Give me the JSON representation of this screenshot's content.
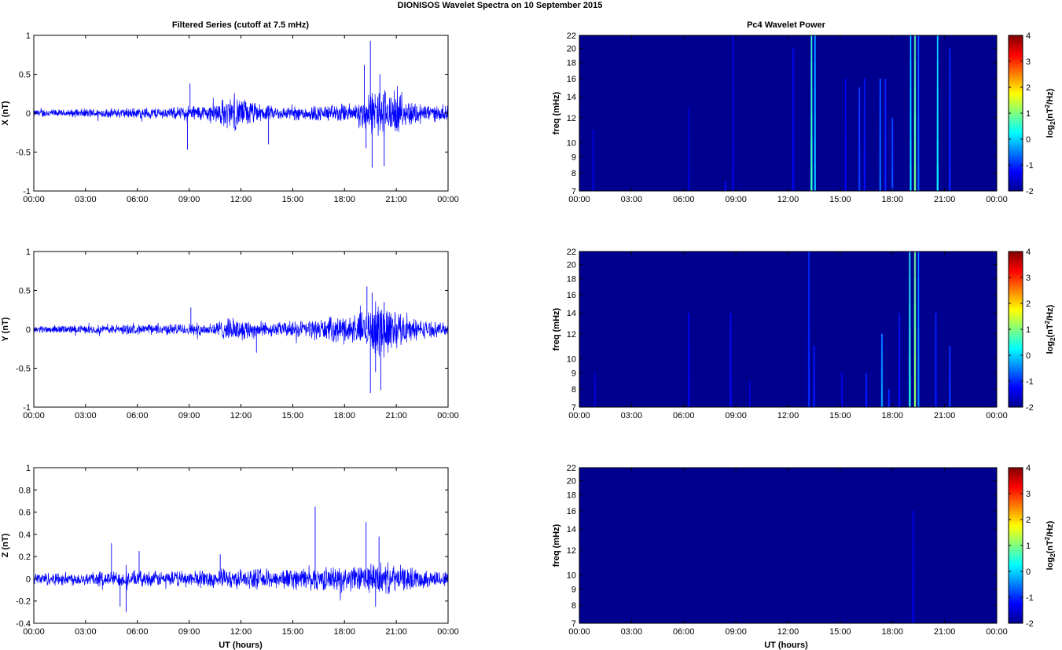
{
  "figure": {
    "title": "DIONISOS Wavelet Spectra on 10 September 2015",
    "left_title": "Filtered Series (cutoff at 7.5 mHz)",
    "right_title": "Pc4 Wavelet Power",
    "xlabel": "UT (hours)"
  },
  "colors": {
    "series_line": "#0000ff",
    "spectrogram_background": "#00008f",
    "colormap": "jet"
  },
  "chart_data": [
    {
      "type": "line",
      "ylabel": "X (nT)",
      "x_ticks": [
        "00:00",
        "03:00",
        "06:00",
        "09:00",
        "12:00",
        "15:00",
        "18:00",
        "21:00",
        "00:00"
      ],
      "xlim_hours": [
        0,
        24
      ],
      "ylim": [
        -1,
        1
      ],
      "y_ticks": [
        "-1",
        "-0.5",
        "0",
        "0.5",
        "1"
      ],
      "y_tick_values": [
        -1,
        -0.5,
        0,
        0.5,
        1
      ],
      "series": [
        {
          "envelope": [
            0.05,
            0.07,
            0.05,
            0.06,
            0.07,
            0.07,
            0.07,
            0.08,
            0.08,
            0.09,
            0.08,
            0.1,
            0.12,
            0.12,
            0.2,
            0.26,
            0.2,
            0.13,
            0.1,
            0.1,
            0.11,
            0.12,
            0.12,
            0.14,
            0.15,
            0.28,
            0.4,
            0.3,
            0.2,
            0.16,
            0.12,
            0.1
          ],
          "spikes": [
            [
              8.9,
              -0.47
            ],
            [
              9.05,
              0.38
            ],
            [
              13.6,
              -0.4
            ],
            [
              19.5,
              0.93
            ],
            [
              19.6,
              -0.7
            ],
            [
              20.3,
              -0.68
            ],
            [
              20.05,
              0.5
            ],
            [
              19.25,
              -0.45
            ],
            [
              19.15,
              0.62
            ]
          ]
        }
      ]
    },
    {
      "type": "line",
      "ylabel": "Y (nT)",
      "x_ticks": [
        "00:00",
        "03:00",
        "06:00",
        "09:00",
        "12:00",
        "15:00",
        "18:00",
        "21:00",
        "00:00"
      ],
      "xlim_hours": [
        0,
        24
      ],
      "ylim": [
        -1,
        1
      ],
      "y_ticks": [
        "-1",
        "-0.5",
        "0",
        "0.5",
        "1"
      ],
      "y_tick_values": [
        -1,
        -0.5,
        0,
        0.5,
        1
      ],
      "series": [
        {
          "envelope": [
            0.05,
            0.06,
            0.06,
            0.06,
            0.06,
            0.07,
            0.07,
            0.08,
            0.07,
            0.08,
            0.08,
            0.09,
            0.09,
            0.1,
            0.14,
            0.17,
            0.15,
            0.12,
            0.1,
            0.12,
            0.13,
            0.15,
            0.17,
            0.2,
            0.22,
            0.3,
            0.45,
            0.3,
            0.2,
            0.14,
            0.11,
            0.09
          ],
          "spikes": [
            [
              9.1,
              0.28
            ],
            [
              12.9,
              -0.3
            ],
            [
              19.5,
              -0.82
            ],
            [
              19.6,
              0.47
            ],
            [
              20.1,
              -0.78
            ],
            [
              20.3,
              0.35
            ],
            [
              19.3,
              0.55
            ],
            [
              19.8,
              -0.55
            ]
          ]
        }
      ]
    },
    {
      "type": "line",
      "ylabel": "Z (nT)",
      "x_ticks": [
        "00:00",
        "03:00",
        "06:00",
        "09:00",
        "12:00",
        "15:00",
        "18:00",
        "21:00",
        "00:00"
      ],
      "xlim_hours": [
        0,
        24
      ],
      "ylim": [
        -0.4,
        1
      ],
      "y_ticks": [
        "-0.4",
        "-0.2",
        "0",
        "0.2",
        "0.4",
        "0.6",
        "0.8",
        "1"
      ],
      "y_tick_values": [
        -0.4,
        -0.2,
        0,
        0.2,
        0.4,
        0.6,
        0.8,
        1
      ],
      "series": [
        {
          "envelope": [
            0.06,
            0.07,
            0.07,
            0.07,
            0.07,
            0.08,
            0.08,
            0.08,
            0.08,
            0.08,
            0.08,
            0.08,
            0.09,
            0.09,
            0.1,
            0.1,
            0.1,
            0.1,
            0.1,
            0.11,
            0.11,
            0.12,
            0.12,
            0.13,
            0.13,
            0.15,
            0.17,
            0.14,
            0.12,
            0.1,
            0.09,
            0.08
          ],
          "spikes": [
            [
              4.5,
              0.32
            ],
            [
              5.35,
              -0.3
            ],
            [
              5.0,
              -0.25
            ],
            [
              16.3,
              0.65
            ],
            [
              19.25,
              0.51
            ],
            [
              20.0,
              0.38
            ],
            [
              19.8,
              -0.25
            ],
            [
              10.8,
              0.22
            ],
            [
              6.1,
              0.25
            ]
          ]
        }
      ]
    },
    {
      "type": "heatmap",
      "ylabel": "freq (mHz)",
      "x_ticks": [
        "00:00",
        "03:00",
        "06:00",
        "09:00",
        "12:00",
        "15:00",
        "18:00",
        "21:00",
        "00:00"
      ],
      "xlim_hours": [
        0,
        24
      ],
      "ylim_mhz": [
        7,
        22
      ],
      "y_tick_values": [
        7,
        8,
        9,
        10,
        12,
        14,
        16,
        18,
        20,
        22
      ],
      "y_ticks": [
        "7",
        "8",
        "9",
        "10",
        "12",
        "14",
        "16",
        "18",
        "20",
        "22"
      ],
      "colorbar_label": "log2(nT2/Hz)",
      "colorbar_ticks": [
        "4",
        "3",
        "2",
        "1",
        "0",
        "-1",
        "-2"
      ],
      "clim": [
        -2,
        4
      ],
      "streaks": [
        [
          0.8,
          11,
          0.15
        ],
        [
          8.4,
          7.5,
          0.35
        ],
        [
          8.85,
          22,
          0.2
        ],
        [
          6.3,
          13,
          0.1
        ],
        [
          13.35,
          22,
          2.2
        ],
        [
          13.55,
          22,
          1.5
        ],
        [
          12.3,
          20,
          0.3
        ],
        [
          15.3,
          16,
          0.25
        ],
        [
          16.1,
          15,
          0.7
        ],
        [
          16.4,
          16,
          0.4
        ],
        [
          17.3,
          16,
          1.0
        ],
        [
          17.6,
          16,
          0.5
        ],
        [
          18.0,
          12,
          0.8
        ],
        [
          19.05,
          22,
          1.6
        ],
        [
          19.3,
          22,
          2.6
        ],
        [
          19.5,
          22,
          0.9
        ],
        [
          20.6,
          22,
          1.8
        ],
        [
          21.3,
          20,
          0.6
        ]
      ]
    },
    {
      "type": "heatmap",
      "ylabel": "freq (mHz)",
      "x_ticks": [
        "00:00",
        "03:00",
        "06:00",
        "09:00",
        "12:00",
        "15:00",
        "18:00",
        "21:00",
        "00:00"
      ],
      "xlim_hours": [
        0,
        24
      ],
      "ylim_mhz": [
        7,
        22
      ],
      "y_tick_values": [
        7,
        8,
        9,
        10,
        12,
        14,
        16,
        18,
        20,
        22
      ],
      "y_ticks": [
        "7",
        "8",
        "9",
        "10",
        "12",
        "14",
        "16",
        "18",
        "20",
        "22"
      ],
      "colorbar_label": "log2(nT2/Hz)",
      "colorbar_ticks": [
        "4",
        "3",
        "2",
        "1",
        "0",
        "-1",
        "-2"
      ],
      "clim": [
        -2,
        4
      ],
      "streaks": [
        [
          0.9,
          9,
          0.1
        ],
        [
          6.3,
          14,
          0.3
        ],
        [
          8.7,
          14,
          0.3
        ],
        [
          9.8,
          8.5,
          0.1
        ],
        [
          13.2,
          22,
          0.6
        ],
        [
          13.5,
          11,
          0.5
        ],
        [
          15.1,
          9,
          0.2
        ],
        [
          16.5,
          9,
          0.5
        ],
        [
          17.4,
          12,
          1.3
        ],
        [
          17.8,
          8,
          0.6
        ],
        [
          18.4,
          14,
          0.4
        ],
        [
          19.0,
          22,
          2.0
        ],
        [
          19.3,
          22,
          2.8
        ],
        [
          19.5,
          22,
          1.1
        ],
        [
          20.5,
          14,
          0.5
        ],
        [
          21.3,
          11,
          0.7
        ]
      ]
    },
    {
      "type": "heatmap",
      "ylabel": "freq (mHz)",
      "x_ticks": [
        "00:00",
        "03:00",
        "06:00",
        "09:00",
        "12:00",
        "15:00",
        "18:00",
        "21:00",
        "00:00"
      ],
      "xlim_hours": [
        0,
        24
      ],
      "ylim_mhz": [
        7,
        22
      ],
      "y_tick_values": [
        7,
        8,
        9,
        10,
        12,
        14,
        16,
        18,
        20,
        22
      ],
      "y_ticks": [
        "7",
        "8",
        "9",
        "10",
        "12",
        "14",
        "16",
        "18",
        "20",
        "22"
      ],
      "colorbar_label": "log2(nT2/Hz)",
      "colorbar_ticks": [
        "4",
        "3",
        "2",
        "1",
        "0",
        "-1",
        "-2"
      ],
      "clim": [
        -2,
        4
      ],
      "streaks": [
        [
          19.2,
          16,
          0.25
        ]
      ]
    }
  ]
}
